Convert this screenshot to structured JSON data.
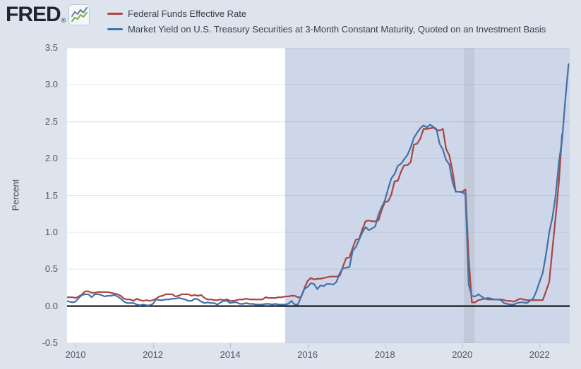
{
  "header": {
    "logo_text": "FRED",
    "logo_registered": "®",
    "legend": [
      {
        "label": "Federal Funds Effective Rate",
        "color": "#aa4643"
      },
      {
        "label": "Market Yield on U.S. Treasury Securities at 3-Month Constant Maturity, Quoted on an Investment Basis",
        "color": "#4572a7"
      }
    ]
  },
  "chart_data": {
    "type": "line",
    "title": "",
    "xlabel": "",
    "ylabel": "Percent",
    "ylim": [
      -0.5,
      3.5
    ],
    "xlim": [
      2009.78,
      2022.78
    ],
    "grid": true,
    "zero_line": true,
    "legend_position": "top-left",
    "ytick_values": [
      3.5,
      3.0,
      2.5,
      2.0,
      1.5,
      1.0,
      0.5,
      0.0,
      -0.5
    ],
    "ytick_labels": [
      "3.5",
      "3.0",
      "2.5",
      "2.0",
      "1.5",
      "1.0",
      "0.5",
      "0.0",
      "-0.5"
    ],
    "xtick_values": [
      2010,
      2012,
      2014,
      2016,
      2018,
      2020,
      2022
    ],
    "xtick_labels": [
      "2010",
      "2012",
      "2014",
      "2016",
      "2018",
      "2020",
      "2022"
    ],
    "background": {
      "page": "#dde4ee",
      "plot": "#ffffff",
      "gridline": "rgba(105,115,135,0.18)",
      "highlight_region": {
        "x_start": 2015.42,
        "x_end": 2022.78,
        "color": "#cdd7e9"
      },
      "recession_band": {
        "x_start": 2020.04,
        "x_end": 2020.32,
        "color": "#c2cad9"
      }
    },
    "frequency": "monthly",
    "x_start": 2009.75,
    "series": [
      {
        "name": "Federal Funds Effective Rate",
        "color": "#aa4643",
        "values": [
          0.12,
          0.12,
          0.12,
          0.11,
          0.13,
          0.16,
          0.2,
          0.2,
          0.18,
          0.18,
          0.19,
          0.19,
          0.19,
          0.19,
          0.18,
          0.17,
          0.16,
          0.14,
          0.1,
          0.09,
          0.09,
          0.07,
          0.1,
          0.08,
          0.07,
          0.08,
          0.07,
          0.08,
          0.1,
          0.13,
          0.14,
          0.16,
          0.16,
          0.16,
          0.13,
          0.14,
          0.16,
          0.16,
          0.16,
          0.14,
          0.15,
          0.14,
          0.15,
          0.11,
          0.09,
          0.09,
          0.08,
          0.08,
          0.09,
          0.08,
          0.09,
          0.07,
          0.07,
          0.08,
          0.09,
          0.09,
          0.1,
          0.09,
          0.09,
          0.09,
          0.09,
          0.09,
          0.12,
          0.11,
          0.11,
          0.11,
          0.12,
          0.12,
          0.13,
          0.13,
          0.14,
          0.14,
          0.12,
          0.12,
          0.24,
          0.34,
          0.38,
          0.36,
          0.37,
          0.37,
          0.38,
          0.39,
          0.4,
          0.4,
          0.4,
          0.41,
          0.54,
          0.65,
          0.66,
          0.79,
          0.9,
          0.91,
          1.04,
          1.15,
          1.16,
          1.15,
          1.15,
          1.16,
          1.3,
          1.41,
          1.42,
          1.51,
          1.69,
          1.7,
          1.82,
          1.91,
          1.91,
          1.95,
          2.19,
          2.2,
          2.27,
          2.4,
          2.4,
          2.41,
          2.42,
          2.39,
          2.38,
          2.4,
          2.13,
          2.04,
          1.83,
          1.55,
          1.55,
          1.55,
          1.58,
          0.65,
          0.05,
          0.05,
          0.08,
          0.09,
          0.1,
          0.09,
          0.09,
          0.09,
          0.09,
          0.09,
          0.08,
          0.07,
          0.07,
          0.06,
          0.08,
          0.1,
          0.09,
          0.08,
          0.08,
          0.08,
          0.08,
          0.08,
          0.08,
          0.2,
          0.33,
          0.77,
          1.21,
          1.68,
          2.33
        ]
      },
      {
        "name": "Market Yield on U.S. Treasury Securities at 3-Month Constant Maturity, Quoted on an Investment Basis",
        "color": "#4572a7",
        "values": [
          0.07,
          0.06,
          0.05,
          0.06,
          0.11,
          0.15,
          0.16,
          0.16,
          0.12,
          0.16,
          0.16,
          0.15,
          0.13,
          0.14,
          0.14,
          0.15,
          0.13,
          0.1,
          0.06,
          0.04,
          0.04,
          0.04,
          0.02,
          0.01,
          0.02,
          0.01,
          0.01,
          0.03,
          0.09,
          0.08,
          0.08,
          0.09,
          0.09,
          0.1,
          0.1,
          0.11,
          0.1,
          0.09,
          0.07,
          0.07,
          0.1,
          0.09,
          0.06,
          0.04,
          0.05,
          0.04,
          0.04,
          0.02,
          0.05,
          0.07,
          0.07,
          0.04,
          0.05,
          0.05,
          0.03,
          0.03,
          0.04,
          0.03,
          0.03,
          0.02,
          0.02,
          0.02,
          0.03,
          0.03,
          0.02,
          0.03,
          0.02,
          0.02,
          0.02,
          0.03,
          0.07,
          0.02,
          0.02,
          0.13,
          0.23,
          0.26,
          0.31,
          0.3,
          0.23,
          0.28,
          0.27,
          0.3,
          0.3,
          0.29,
          0.33,
          0.45,
          0.51,
          0.52,
          0.53,
          0.75,
          0.8,
          0.9,
          1.0,
          1.07,
          1.03,
          1.05,
          1.08,
          1.24,
          1.34,
          1.43,
          1.59,
          1.73,
          1.79,
          1.9,
          1.93,
          1.99,
          2.05,
          2.15,
          2.28,
          2.35,
          2.41,
          2.45,
          2.42,
          2.46,
          2.43,
          2.4,
          2.2,
          2.12,
          1.98,
          1.92,
          1.68,
          1.55,
          1.55,
          1.54,
          1.52,
          0.29,
          0.14,
          0.13,
          0.16,
          0.13,
          0.1,
          0.11,
          0.1,
          0.09,
          0.09,
          0.08,
          0.04,
          0.03,
          0.02,
          0.02,
          0.04,
          0.05,
          0.05,
          0.04,
          0.07,
          0.1,
          0.2,
          0.33,
          0.45,
          0.7,
          1.0,
          1.2,
          1.5,
          1.95,
          2.25,
          2.8,
          3.28
        ]
      }
    ]
  }
}
